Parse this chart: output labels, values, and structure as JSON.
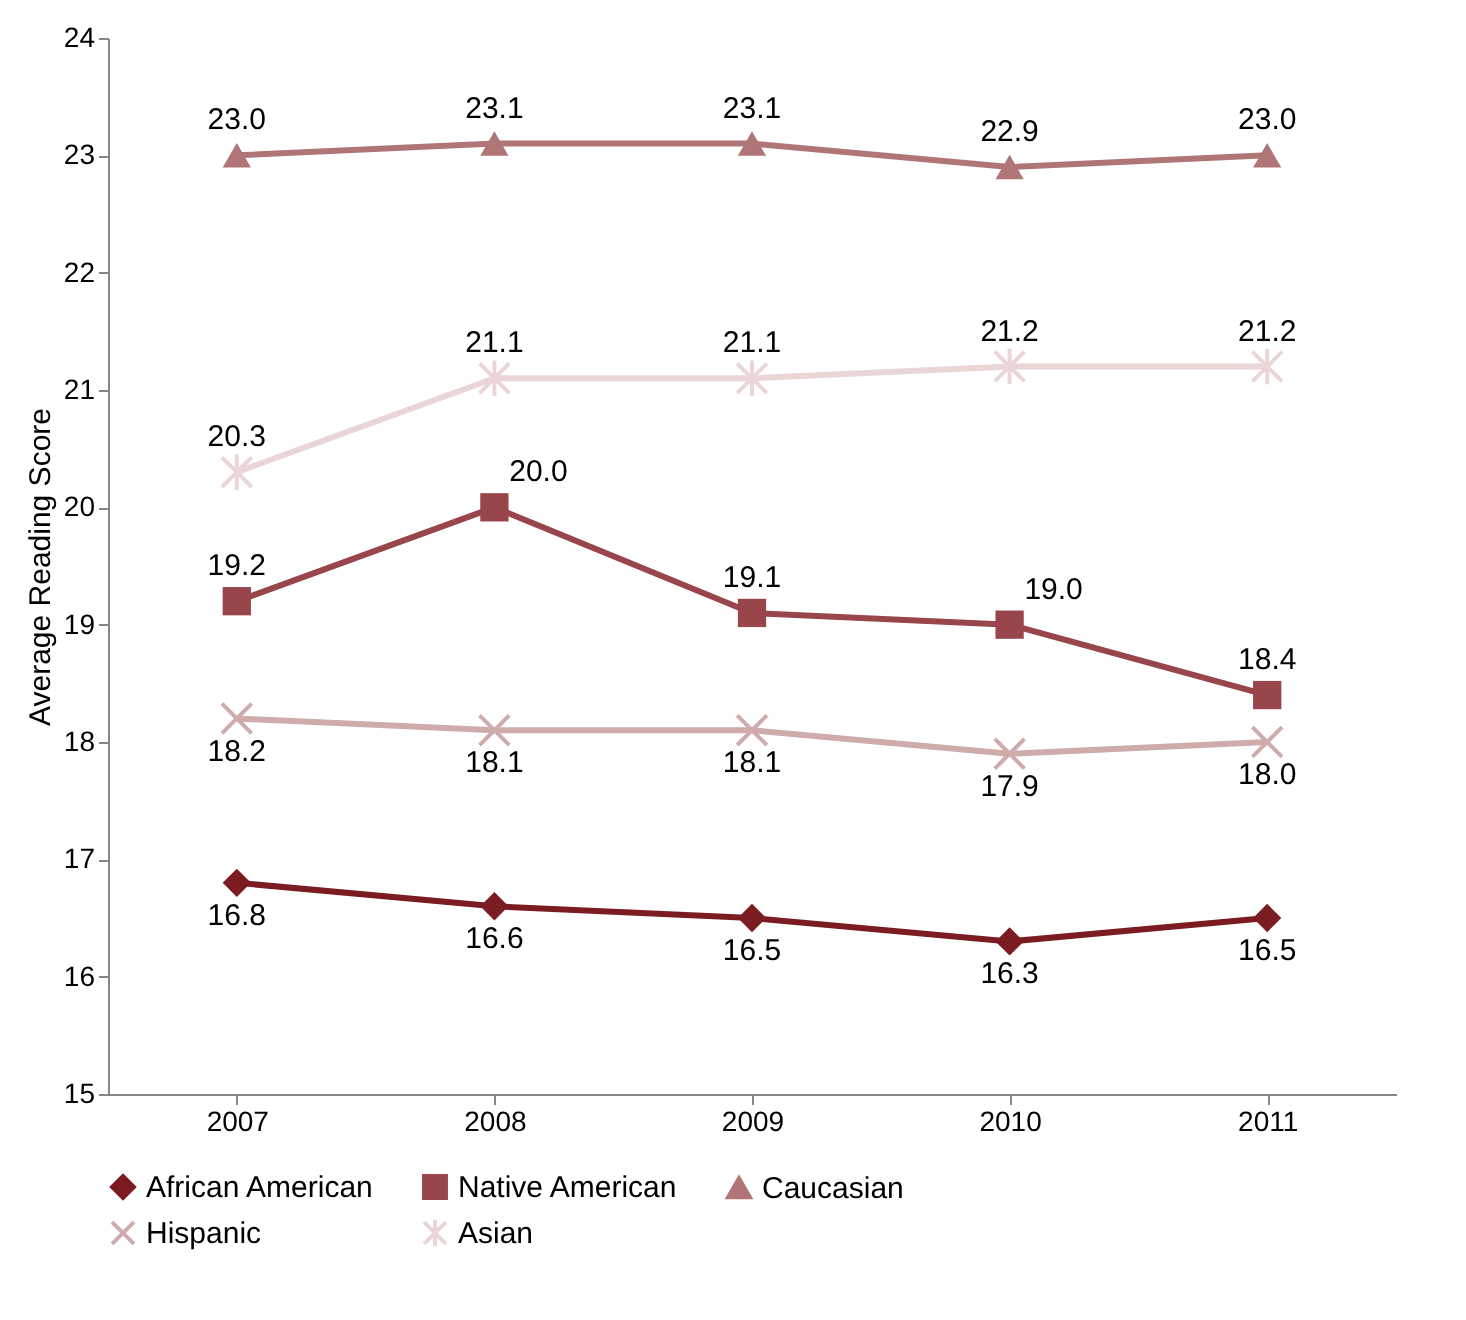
{
  "chart_data": {
    "type": "line",
    "ylabel": "Average Reading Score",
    "categories": [
      "2007",
      "2008",
      "2009",
      "2010",
      "2011"
    ],
    "series": [
      {
        "name": "African American",
        "color": "#7a1c22",
        "marker": "diamond",
        "values": [
          16.8,
          16.6,
          16.5,
          16.3,
          16.5
        ],
        "value_labels": [
          "16.8",
          "16.6",
          "16.5",
          "16.3",
          "16.5"
        ]
      },
      {
        "name": "Native American",
        "color": "#98454b",
        "marker": "square",
        "values": [
          19.2,
          20.0,
          19.1,
          19.0,
          18.4
        ],
        "value_labels": [
          "19.2",
          "20.0",
          "19.1",
          "19.0",
          "18.4"
        ]
      },
      {
        "name": "Caucasian",
        "color": "#b07677",
        "marker": "triangle",
        "values": [
          23.0,
          23.1,
          23.1,
          22.9,
          23.0
        ],
        "value_labels": [
          "23.0",
          "23.1",
          "23.1",
          "22.9",
          "23.0"
        ]
      },
      {
        "name": "Hispanic",
        "color": "#cfabac",
        "marker": "cross",
        "values": [
          18.2,
          18.1,
          18.1,
          17.9,
          18.0
        ],
        "value_labels": [
          "18.2",
          "18.1",
          "18.1",
          "17.9",
          "18.0"
        ]
      },
      {
        "name": "Asian",
        "color": "#ead6d7",
        "marker": "cross",
        "values": [
          20.3,
          21.1,
          21.1,
          21.2,
          21.2
        ],
        "value_labels": [
          "20.3",
          "21.1",
          "21.1",
          "21.2",
          "21.2"
        ]
      }
    ],
    "ylim": [
      15,
      24
    ],
    "yticks": [
      15,
      16,
      17,
      18,
      19,
      20,
      21,
      22,
      23,
      24
    ],
    "grid": false,
    "legend": "bottom",
    "line_style": "solid"
  }
}
